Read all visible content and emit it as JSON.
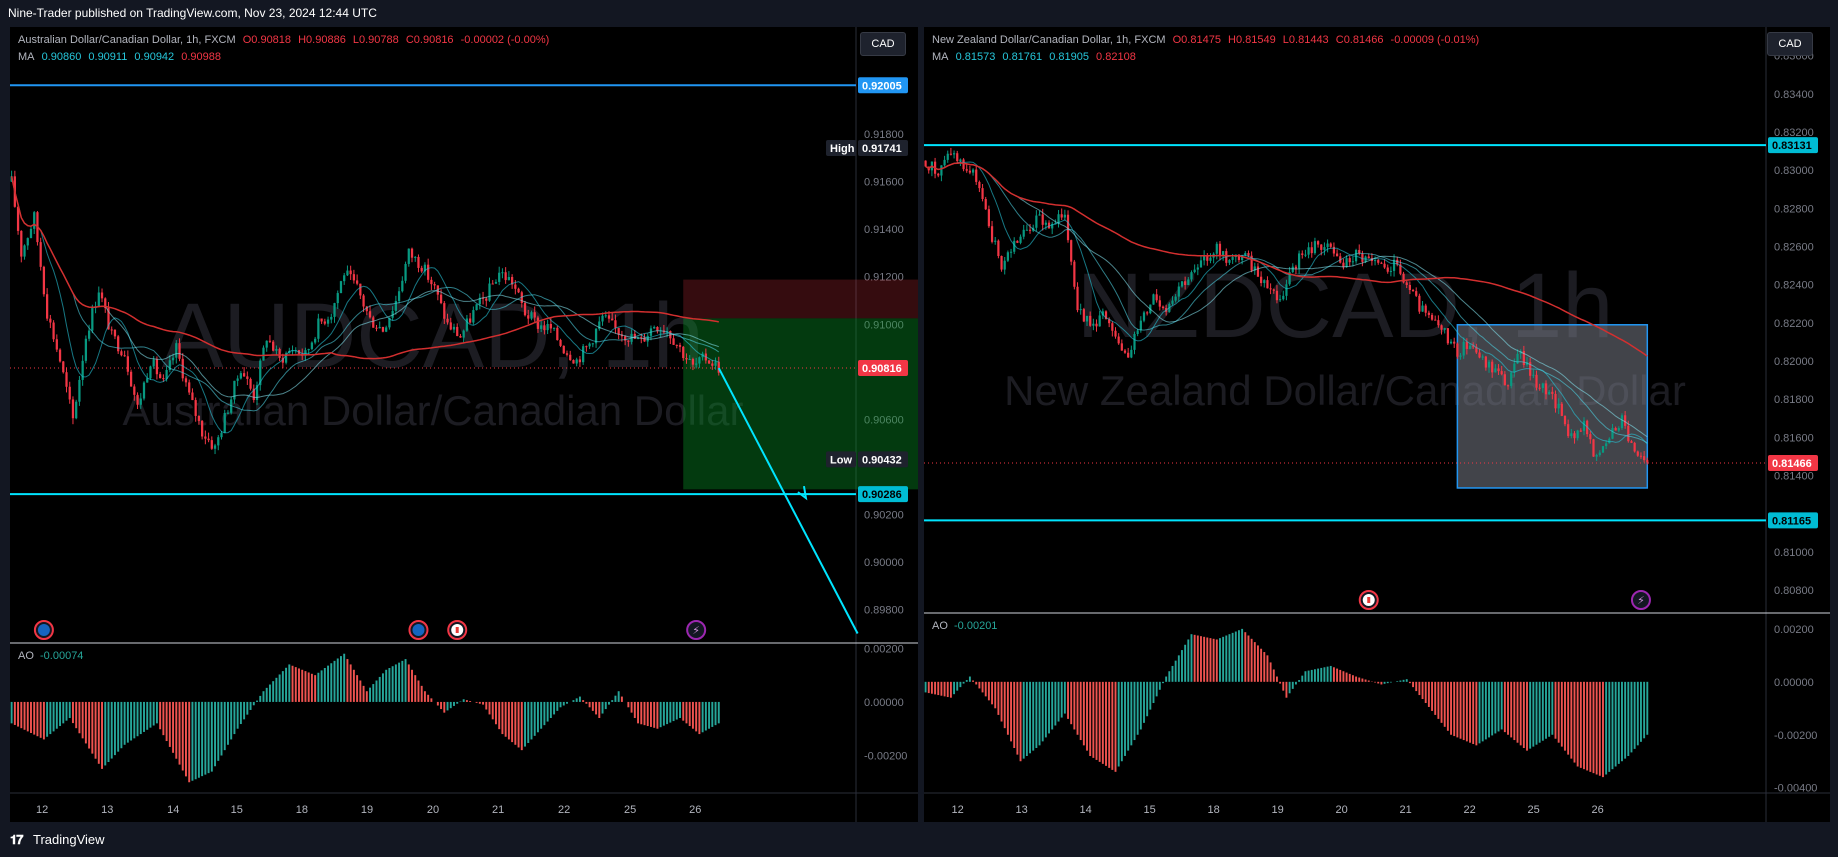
{
  "header": {
    "publisher": "Nine-Trader published on TradingView.com, Nov 23, 2024 12:44 UTC"
  },
  "footer": {
    "brand": "TradingView"
  },
  "colors": {
    "up": "#26a69a",
    "down": "#ef5350",
    "bull_candle": "#089981",
    "bear_candle": "#f23645",
    "sma": "#b71c1c",
    "level": "#2962ff",
    "cyan": "#00e5ff",
    "price": "#f23645"
  },
  "chart_data": [
    {
      "type": "candlestick",
      "symbol": "AUDCAD",
      "timeframe": "1h",
      "watermark_symbol": "AUDCAD, 1h",
      "watermark_name": "Australian Dollar/Canadian Dollar",
      "legend_title": "Australian Dollar/Canadian Dollar, 1h, FXCM",
      "ohlc": {
        "o": "O0.90818",
        "h": "H0.90886",
        "l": "L0.90788",
        "c": "C0.90816",
        "chg": "-0.00002 (-0.00%)"
      },
      "ma_label": "MA",
      "ma_values": [
        "0.90860",
        "0.90911",
        "0.90942",
        "0.90988"
      ],
      "currency": "CAD",
      "x_ticks": [
        "12",
        "13",
        "14",
        "15",
        "18",
        "19",
        "20",
        "21",
        "22",
        "25",
        "26"
      ],
      "y_ticks": [
        "0.92200",
        "0.91800",
        "0.91600",
        "0.91400",
        "0.91200",
        "0.91000",
        "0.90600",
        "0.90200",
        "0.90000",
        "0.89800"
      ],
      "ylim": [
        0.8966,
        0.9225
      ],
      "price_tags": [
        {
          "label": "",
          "value": "0.92005",
          "kind": "blue"
        },
        {
          "label": "High",
          "value": "0.91741",
          "kind": "dark"
        },
        {
          "label": "",
          "value": "0.90816",
          "kind": "red"
        },
        {
          "label": "Low",
          "value": "0.90432",
          "kind": "dark"
        },
        {
          "label": "",
          "value": "0.90286",
          "kind": "cyan"
        }
      ],
      "levels": [
        0.92005,
        0.90286
      ],
      "current_price": 0.90816,
      "high": 0.91741,
      "low": 0.90432,
      "path_points": [
        [
          0,
          0.916
        ],
        [
          3,
          0.913
        ],
        [
          7,
          0.9145
        ],
        [
          11,
          0.9105
        ],
        [
          15,
          0.9085
        ],
        [
          19,
          0.906
        ],
        [
          23,
          0.9095
        ],
        [
          27,
          0.9115
        ],
        [
          31,
          0.9095
        ],
        [
          35,
          0.9088
        ],
        [
          39,
          0.9065
        ],
        [
          43,
          0.9085
        ],
        [
          47,
          0.9075
        ],
        [
          51,
          0.909
        ],
        [
          55,
          0.907
        ],
        [
          59,
          0.9055
        ],
        [
          63,
          0.9048
        ],
        [
          67,
          0.9065
        ],
        [
          71,
          0.9082
        ],
        [
          75,
          0.907
        ],
        [
          79,
          0.9095
        ],
        [
          83,
          0.9085
        ],
        [
          87,
          0.909
        ],
        [
          91,
          0.9087
        ],
        [
          95,
          0.91
        ],
        [
          99,
          0.9105
        ],
        [
          103,
          0.9122
        ],
        [
          107,
          0.9115
        ],
        [
          111,
          0.9102
        ],
        [
          115,
          0.9098
        ],
        [
          119,
          0.911
        ],
        [
          123,
          0.913
        ],
        [
          127,
          0.9125
        ],
        [
          131,
          0.9115
        ],
        [
          135,
          0.91
        ],
        [
          139,
          0.9095
        ],
        [
          143,
          0.9105
        ],
        [
          147,
          0.9112
        ],
        [
          151,
          0.9122
        ],
        [
          155,
          0.9118
        ],
        [
          159,
          0.9105
        ],
        [
          163,
          0.91
        ],
        [
          167,
          0.9098
        ],
        [
          171,
          0.909
        ],
        [
          175,
          0.9085
        ],
        [
          179,
          0.9092
        ],
        [
          183,
          0.9103
        ],
        [
          187,
          0.9098
        ],
        [
          191,
          0.9095
        ],
        [
          195,
          0.9093
        ],
        [
          199,
          0.91
        ],
        [
          203,
          0.9098
        ],
        [
          207,
          0.909
        ],
        [
          211,
          0.9082
        ],
        [
          215,
          0.9086
        ],
        [
          219,
          0.9082
        ]
      ],
      "position": {
        "entry": 0.91025,
        "stop": 0.91188,
        "target": 0.90306,
        "start": 208,
        "end": 300
      },
      "forecast": {
        "from": [
          219,
          0.90816
        ],
        "to": [
          246,
          0.90286
        ],
        "to2": [
          262,
          0.897
        ]
      },
      "ao_value": "-0.00074",
      "ao_ticks": [
        "0.00200",
        "0.00000",
        "-0.00200"
      ],
      "ao_range": [
        -0.0034,
        0.0022
      ],
      "ao_points": [
        [
          0,
          -0.0008
        ],
        [
          10,
          -0.0014
        ],
        [
          18,
          -0.0006
        ],
        [
          28,
          -0.0025
        ],
        [
          35,
          -0.0016
        ],
        [
          45,
          -0.0008
        ],
        [
          55,
          -0.003
        ],
        [
          62,
          -0.0026
        ],
        [
          70,
          -0.001
        ],
        [
          78,
          0.0004
        ],
        [
          86,
          0.0014
        ],
        [
          94,
          0.001
        ],
        [
          103,
          0.0018
        ],
        [
          110,
          0.0004
        ],
        [
          116,
          0.0012
        ],
        [
          122,
          0.0016
        ],
        [
          128,
          0.0004
        ],
        [
          134,
          -0.0004
        ],
        [
          140,
          0.0001
        ],
        [
          146,
          -0.0001
        ],
        [
          152,
          -0.0012
        ],
        [
          158,
          -0.0018
        ],
        [
          164,
          -0.001
        ],
        [
          170,
          -0.0002
        ],
        [
          176,
          0.0002
        ],
        [
          182,
          -0.0006
        ],
        [
          188,
          0.0004
        ],
        [
          194,
          -0.0008
        ],
        [
          200,
          -0.001
        ],
        [
          207,
          -0.0006
        ],
        [
          213,
          -0.0012
        ],
        [
          219,
          -0.0008
        ]
      ],
      "events": [
        {
          "x": 10,
          "type": "au"
        },
        {
          "x": 126,
          "type": "au"
        },
        {
          "x": 138,
          "type": "ca"
        },
        {
          "x": 212,
          "type": "bolt"
        }
      ],
      "total_bars": 262
    },
    {
      "type": "candlestick",
      "symbol": "NZDCAD",
      "timeframe": "1h",
      "watermark_symbol": "NZDCAD, 1h",
      "watermark_name": "New Zealand Dollar/Canadian Dollar",
      "legend_title": "New Zealand Dollar/Canadian Dollar, 1h, FXCM",
      "ohlc": {
        "o": "O0.81475",
        "h": "H0.81549",
        "l": "L0.81443",
        "c": "C0.81466",
        "chg": "-0.00009 (-0.01%)"
      },
      "ma_label": "MA",
      "ma_values": [
        "0.81573",
        "0.81761",
        "0.81905",
        "0.82108"
      ],
      "currency": "CAD",
      "x_ticks": [
        "12",
        "13",
        "14",
        "15",
        "18",
        "19",
        "20",
        "21",
        "22",
        "25",
        "26"
      ],
      "y_ticks": [
        "0.83600",
        "0.83400",
        "0.83200",
        "0.83000",
        "0.82800",
        "0.82600",
        "0.82400",
        "0.82200",
        "0.82000",
        "0.81800",
        "0.81600",
        "0.81400",
        "0.81000",
        "0.80800"
      ],
      "ylim": [
        0.8068,
        0.8375
      ],
      "price_tags": [
        {
          "label": "",
          "value": "0.83131",
          "kind": "cyan"
        },
        {
          "label": "",
          "value": "0.81466",
          "kind": "red"
        },
        {
          "label": "",
          "value": "0.81165",
          "kind": "cyan"
        }
      ],
      "levels": [
        0.83131,
        0.81165
      ],
      "current_price": 0.81466,
      "path_points": [
        [
          0,
          0.8305
        ],
        [
          4,
          0.8298
        ],
        [
          8,
          0.831
        ],
        [
          12,
          0.8302
        ],
        [
          16,
          0.8296
        ],
        [
          20,
          0.827
        ],
        [
          24,
          0.825
        ],
        [
          28,
          0.8262
        ],
        [
          32,
          0.8268
        ],
        [
          36,
          0.8275
        ],
        [
          40,
          0.827
        ],
        [
          44,
          0.8278
        ],
        [
          48,
          0.823
        ],
        [
          52,
          0.8218
        ],
        [
          56,
          0.8225
        ],
        [
          60,
          0.821
        ],
        [
          64,
          0.8205
        ],
        [
          68,
          0.822
        ],
        [
          72,
          0.8235
        ],
        [
          76,
          0.8228
        ],
        [
          80,
          0.824
        ],
        [
          84,
          0.8245
        ],
        [
          88,
          0.8252
        ],
        [
          92,
          0.826
        ],
        [
          96,
          0.8252
        ],
        [
          100,
          0.8256
        ],
        [
          104,
          0.8248
        ],
        [
          108,
          0.824
        ],
        [
          112,
          0.8232
        ],
        [
          116,
          0.825
        ],
        [
          120,
          0.8256
        ],
        [
          124,
          0.8262
        ],
        [
          128,
          0.8258
        ],
        [
          132,
          0.825
        ],
        [
          136,
          0.8256
        ],
        [
          140,
          0.8252
        ],
        [
          144,
          0.8248
        ],
        [
          148,
          0.825
        ],
        [
          152,
          0.824
        ],
        [
          156,
          0.8228
        ],
        [
          160,
          0.822
        ],
        [
          164,
          0.8215
        ],
        [
          168,
          0.8205
        ],
        [
          172,
          0.821
        ],
        [
          176,
          0.82
        ],
        [
          180,
          0.8195
        ],
        [
          184,
          0.8188
        ],
        [
          188,
          0.8205
        ],
        [
          192,
          0.819
        ],
        [
          196,
          0.8185
        ],
        [
          200,
          0.8175
        ],
        [
          204,
          0.816
        ],
        [
          208,
          0.8168
        ],
        [
          212,
          0.8148
        ],
        [
          216,
          0.816
        ],
        [
          220,
          0.817
        ],
        [
          224,
          0.8152
        ],
        [
          228,
          0.8146
        ]
      ],
      "box": {
        "top": 0.8219,
        "bottom": 0.81335,
        "start": 168,
        "end": 228
      },
      "ao_value": "-0.00201",
      "ao_ticks": [
        "0.00200",
        "0.00000",
        "-0.00200",
        "-0.00400"
      ],
      "ao_range": [
        -0.0042,
        0.0026
      ],
      "ao_points": [
        [
          0,
          -0.0004
        ],
        [
          8,
          -0.0006
        ],
        [
          14,
          0.0002
        ],
        [
          22,
          -0.001
        ],
        [
          30,
          -0.003
        ],
        [
          36,
          -0.0024
        ],
        [
          44,
          -0.0012
        ],
        [
          52,
          -0.0028
        ],
        [
          60,
          -0.0034
        ],
        [
          68,
          -0.0018
        ],
        [
          76,
          0.0002
        ],
        [
          84,
          0.0018
        ],
        [
          92,
          0.0016
        ],
        [
          100,
          0.002
        ],
        [
          108,
          0.001
        ],
        [
          114,
          -0.0006
        ],
        [
          120,
          0.0004
        ],
        [
          128,
          0.0006
        ],
        [
          136,
          0.0002
        ],
        [
          144,
          -0.0001
        ],
        [
          152,
          0.0001
        ],
        [
          158,
          -0.0008
        ],
        [
          166,
          -0.002
        ],
        [
          174,
          -0.0024
        ],
        [
          182,
          -0.0018
        ],
        [
          190,
          -0.0026
        ],
        [
          198,
          -0.002
        ],
        [
          206,
          -0.0032
        ],
        [
          214,
          -0.0036
        ],
        [
          222,
          -0.0028
        ],
        [
          228,
          -0.002
        ]
      ],
      "events": [
        {
          "x": 140,
          "type": "ca"
        },
        {
          "x": 226,
          "type": "bolt"
        }
      ],
      "total_bars": 266
    }
  ]
}
